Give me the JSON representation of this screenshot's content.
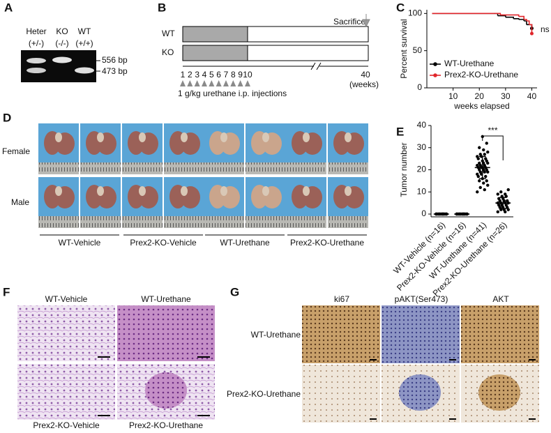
{
  "panel_labels": [
    "A",
    "B",
    "C",
    "D",
    "E",
    "F",
    "G"
  ],
  "genotyping": {
    "lanes": [
      "Heter",
      "KO",
      "WT"
    ],
    "genotypes": [
      "(+/-)",
      "(-/-)",
      "(+/+)"
    ],
    "bands": [
      "556 bp",
      "473 bp"
    ]
  },
  "schedule": {
    "groups": [
      "WT",
      "KO"
    ],
    "sacrifice": "Sacrifice",
    "weeks": [
      1,
      2,
      3,
      4,
      5,
      6,
      7,
      8,
      9,
      10
    ],
    "end_week": 40,
    "unit": "(weeks)",
    "caption": "1 g/kg urethane i.p. injections"
  },
  "chart_data": [
    {
      "type": "line",
      "y_label": "Percent survival",
      "x_label": "weeks elapsed",
      "annotation": "ns",
      "xlim": [
        0,
        42
      ],
      "xticks": [
        10,
        20,
        30,
        40
      ],
      "ylim": [
        0,
        105
      ],
      "yticks": [
        0,
        50,
        100
      ],
      "legend": "lower left",
      "series": [
        {
          "name": "WT-Urethane",
          "color": "#000000",
          "x": [
            2,
            25,
            27,
            30,
            33,
            35,
            37,
            38,
            40
          ],
          "values": [
            100,
            100,
            97,
            95,
            93,
            92,
            90,
            85,
            80
          ]
        },
        {
          "name": "Prex2-KO-Urethane",
          "color": "#e0262b",
          "x": [
            2,
            26,
            28,
            35,
            37,
            38,
            39,
            40
          ],
          "values": [
            100,
            100,
            98,
            96,
            92,
            90,
            85,
            73
          ]
        }
      ]
    },
    {
      "type": "dot",
      "y_label": "Tumor number",
      "annotation": "***",
      "color": "#000000",
      "categories": [
        "WT-Vehicle (n=16)",
        "Prex2-KO-Vehicle (n=16)",
        "WT-Urethane (n=41)",
        "Prex2-KO-Urethane (n=26)"
      ],
      "ylim": [
        0,
        40
      ],
      "yticks": [
        0,
        10,
        20,
        30,
        40
      ],
      "points": [
        [
          0,
          0,
          0,
          0,
          0,
          0,
          0,
          0,
          0,
          0,
          0,
          0,
          0,
          0,
          0,
          0
        ],
        [
          0,
          0,
          0,
          0,
          0,
          0,
          0,
          0,
          0,
          0,
          0,
          0,
          0,
          0,
          0,
          0
        ],
        [
          10,
          11,
          12,
          13,
          14,
          15,
          15,
          16,
          17,
          17,
          18,
          18,
          19,
          19,
          19,
          20,
          20,
          20,
          21,
          21,
          21,
          21,
          22,
          22,
          22,
          23,
          23,
          23,
          24,
          24,
          25,
          25,
          26,
          26,
          27,
          27,
          28,
          29,
          30,
          32,
          35
        ],
        [
          1,
          1,
          2,
          2,
          2,
          3,
          3,
          3,
          4,
          4,
          4,
          5,
          5,
          5,
          5,
          6,
          6,
          6,
          7,
          7,
          8,
          8,
          9,
          9,
          10,
          11
        ]
      ],
      "means": [
        0,
        0,
        21,
        5
      ],
      "sd": [
        0,
        0,
        5,
        2.5
      ]
    }
  ],
  "photos": {
    "rows": [
      "Female",
      "Male"
    ],
    "groups": [
      "WT-Vehicle",
      "Prex2-KO-Vehicle",
      "WT-Urethane",
      "Prex2-KO-Urethane"
    ]
  },
  "histology": {
    "labels": [
      "WT-Vehicle",
      "WT-Urethane",
      "Prex2-KO-Vehicle",
      "Prex2-KO-Urethane"
    ]
  },
  "ihc": {
    "columns": [
      "ki67",
      "pAKT(Ser473)",
      "AKT"
    ],
    "rows": [
      "WT-Urethane",
      "Prex2-KO-Urethane"
    ]
  }
}
